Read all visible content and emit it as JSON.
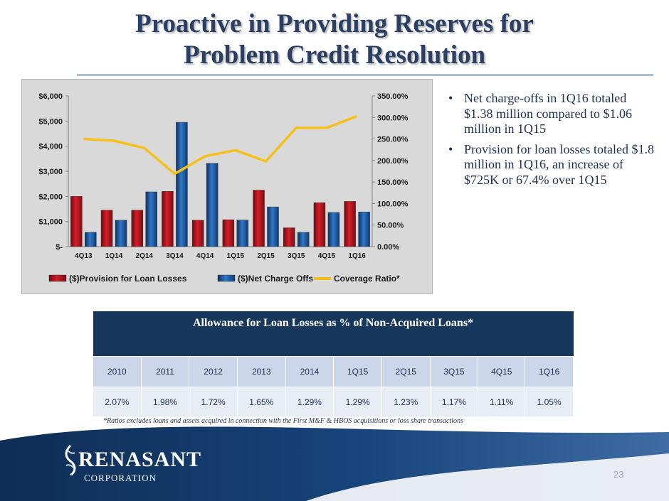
{
  "slide": {
    "title_line1": "Proactive in Providing Reserves for",
    "title_line2": "Problem Credit Resolution",
    "page_number": "23"
  },
  "bullets": [
    {
      "marker": "•",
      "text": "Net charge-offs in 1Q16 totaled $1.38 million  compared to $1.06 million in 1Q15"
    },
    {
      "marker": "•",
      "text": "Provision for loan losses totaled $1.8 million in 1Q16, an increase of $725K or 67.4% over 1Q15"
    }
  ],
  "chart_data": {
    "type": "bar",
    "categories": [
      "4Q13",
      "1Q14",
      "2Q14",
      "3Q14",
      "4Q14",
      "1Q15",
      "2Q15",
      "3Q15",
      "4Q15",
      "1Q16"
    ],
    "series": [
      {
        "name": "($)Provision for Loan Losses",
        "type": "bar",
        "axis": "left",
        "color": "#c0151f",
        "values": [
          2000,
          1450,
          1450,
          2200,
          1050,
          1070,
          2250,
          750,
          1750,
          1800
        ]
      },
      {
        "name": "($)Net Charge Offs",
        "type": "bar",
        "axis": "left",
        "color": "#1f5fa8",
        "values": [
          570,
          1050,
          2180,
          4950,
          3320,
          1060,
          1580,
          570,
          1360,
          1380
        ]
      },
      {
        "name": "Coverage Ratio*",
        "type": "line",
        "axis": "right",
        "color": "#f7bf1a",
        "values": [
          250,
          246,
          229,
          169,
          210,
          224,
          198,
          276,
          276,
          303
        ]
      }
    ],
    "y_left": {
      "ylim": [
        0,
        6000
      ],
      "ticks": [
        0,
        1000,
        2000,
        3000,
        4000,
        5000,
        6000
      ],
      "tick_labels": [
        "$-",
        "$1,000",
        "$2,000",
        "$3,000",
        "$4,000",
        "$5,000",
        "$6,000"
      ]
    },
    "y_right": {
      "ylim": [
        0,
        350
      ],
      "ticks": [
        0,
        50,
        100,
        150,
        200,
        250,
        300,
        350
      ],
      "tick_labels": [
        "0.00%",
        "50.00%",
        "100.00%",
        "150.00%",
        "200.00%",
        "250.00%",
        "300.00%",
        "350.00%"
      ]
    },
    "legend_position": "bottom",
    "title": "",
    "xlabel": "",
    "ylabel": ""
  },
  "allowance_table": {
    "title": "Allowance for Loan Losses as % of Non-Acquired Loans*",
    "periods": [
      "2010",
      "2011",
      "2012",
      "2013",
      "2014",
      "1Q15",
      "2Q15",
      "3Q15",
      "4Q15",
      "1Q16"
    ],
    "values": [
      "2.07%",
      "1.98%",
      "1.72%",
      "1.65%",
      "1.29%",
      "1.29%",
      "1.23%",
      "1.17%",
      "1.11%",
      "1.05%"
    ],
    "footnote": "*Ratios excludes loans and assets acquired in connection with the First M&F & HBOS acquisitions or loss share transactions"
  },
  "logo": {
    "name": "RENASANT",
    "subtitle": "CORPORATION"
  },
  "colors": {
    "title": "#2b3f63",
    "navy": "#17385c",
    "provision": "#c0151f",
    "charge_offs": "#1f5fa8",
    "coverage": "#f7bf1a"
  }
}
